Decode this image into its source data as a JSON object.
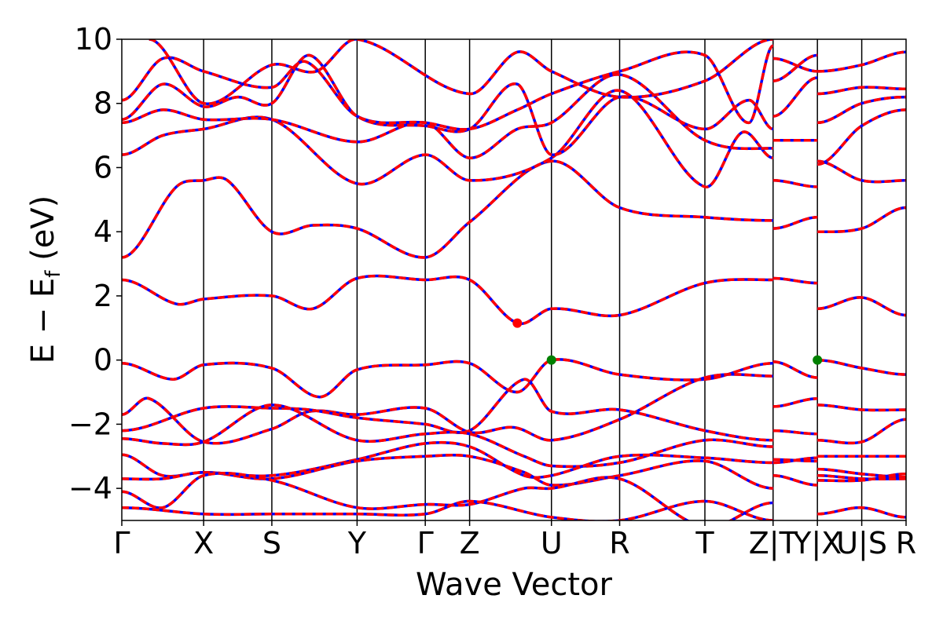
{
  "chart_data": {
    "type": "line",
    "title": "",
    "xlabel": "Wave Vector",
    "ylabel": "E − E_f (eV)",
    "ylabel_main": "E − E",
    "ylabel_sub": "f",
    "ylabel_unit": " (eV)",
    "ylim": [
      -5,
      10
    ],
    "yticks": [
      -4,
      -2,
      0,
      2,
      4,
      6,
      8,
      10
    ],
    "ytick_labels": [
      "−4",
      "−2",
      "0",
      "2",
      "4",
      "6",
      "8",
      "10"
    ],
    "xlim": [
      0,
      11.5
    ],
    "kpath": [
      {
        "label": "Γ",
        "x": 0.0
      },
      {
        "label": "X",
        "x": 1.2
      },
      {
        "label": "S",
        "x": 2.2
      },
      {
        "label": "Y",
        "x": 3.45
      },
      {
        "label": "Γ",
        "x": 4.45
      },
      {
        "label": "Z",
        "x": 5.1
      },
      {
        "label": "U",
        "x": 6.3
      },
      {
        "label": "R",
        "x": 7.3
      },
      {
        "label": "T",
        "x": 8.55
      },
      {
        "label": "Z|T",
        "x": 9.55
      },
      {
        "label": "Y|X",
        "x": 10.2
      },
      {
        "label": "U|S",
        "x": 10.85
      },
      {
        "label": "R",
        "x": 11.5
      }
    ],
    "series": [
      {
        "color": "#0000ff",
        "style": "solid"
      },
      {
        "color": "#ff0000",
        "style": "dashed"
      }
    ],
    "bands": [
      {
        "x": [
          0,
          0.75,
          1.2,
          2.2,
          2.9,
          3.45,
          4.45,
          5.1,
          5.8,
          6.3,
          7.3,
          8.55,
          9.55
        ],
        "y": [
          -0.1,
          -0.6,
          -0.15,
          -0.25,
          -1.15,
          -0.3,
          -0.15,
          -0.1,
          -1.0,
          0.0,
          -0.45,
          -0.6,
          -0.1
        ]
      },
      {
        "x": [
          9.55,
          10.2
        ],
        "y": [
          -0.05,
          -0.55
        ]
      },
      {
        "x": [
          10.2,
          10.85,
          11.5
        ],
        "y": [
          0.0,
          -0.25,
          -0.45
        ]
      },
      {
        "x": [
          0,
          0.4,
          1.2,
          2.2,
          2.75,
          3.45,
          4.45,
          5.1,
          5.75,
          6.3,
          7.3,
          8.55,
          9.55
        ],
        "y": [
          -1.7,
          -1.2,
          -2.55,
          -2.15,
          -1.6,
          -1.7,
          -1.5,
          -2.25,
          -2.1,
          -2.5,
          -1.85,
          -0.55,
          -0.5
        ]
      },
      {
        "x": [
          9.55,
          10.2
        ],
        "y": [
          -1.45,
          -1.2
        ]
      },
      {
        "x": [
          10.2,
          10.85,
          11.5
        ],
        "y": [
          -1.4,
          -1.55,
          -1.55
        ]
      },
      {
        "x": [
          0,
          1.2,
          2.2,
          2.75,
          3.45,
          4.45,
          5.1,
          5.9,
          6.3,
          7.3,
          8.55,
          9.55
        ],
        "y": [
          -2.2,
          -1.5,
          -1.5,
          -1.55,
          -1.8,
          -2.0,
          -2.2,
          -0.6,
          -1.6,
          -1.55,
          -2.2,
          -2.5
        ]
      },
      {
        "x": [
          9.55,
          10.2
        ],
        "y": [
          -2.2,
          -2.3
        ]
      },
      {
        "x": [
          10.2,
          10.85,
          11.5
        ],
        "y": [
          -2.5,
          -2.55,
          -1.85
        ]
      },
      {
        "x": [
          0,
          0.6,
          1.2,
          2.2,
          3.45,
          4.45,
          5.1,
          5.9,
          6.3,
          7.3,
          8.55,
          9.55
        ],
        "y": [
          -2.45,
          -2.6,
          -2.55,
          -1.4,
          -2.5,
          -2.3,
          -2.3,
          -3.0,
          -3.3,
          -3.2,
          -2.5,
          -2.7
        ]
      },
      {
        "x": [
          9.55,
          10.2
        ],
        "y": [
          -3.1,
          -3.15
        ]
      },
      {
        "x": [
          10.2,
          10.85,
          11.5
        ],
        "y": [
          -3.0,
          -3.0,
          -3.0
        ]
      },
      {
        "x": [
          0,
          0.6,
          1.2,
          2.2,
          3.45,
          4.45,
          5.1,
          5.9,
          6.3,
          7.3,
          8.55,
          9.55
        ],
        "y": [
          -2.95,
          -3.6,
          -3.5,
          -3.6,
          -3.1,
          -2.6,
          -2.7,
          -3.6,
          -3.6,
          -3.0,
          -3.05,
          -3.2
        ]
      },
      {
        "x": [
          9.55,
          10.2
        ],
        "y": [
          -3.2,
          -3.05
        ]
      },
      {
        "x": [
          10.2,
          10.85,
          11.5
        ],
        "y": [
          -3.4,
          -3.55,
          -3.65
        ]
      },
      {
        "x": [
          0,
          0.6,
          1.2,
          2.2,
          3.45,
          4.45,
          5.1,
          5.9,
          6.3,
          7.3,
          8.55,
          9.55
        ],
        "y": [
          -3.7,
          -3.7,
          -3.5,
          -3.7,
          -3.15,
          -3.0,
          -3.0,
          -3.5,
          -3.9,
          -3.6,
          -3.15,
          -4.0
        ]
      },
      {
        "x": [
          9.55,
          10.2
        ],
        "y": [
          -3.6,
          -3.9
        ]
      },
      {
        "x": [
          10.2,
          10.85,
          11.5
        ],
        "y": [
          -3.6,
          -3.7,
          -3.7
        ]
      },
      {
        "x": [
          0,
          0.6,
          1.2,
          2.2,
          3.45,
          4.45,
          5.1,
          5.9,
          6.3,
          7.3,
          8.55,
          9.55
        ],
        "y": [
          -4.1,
          -4.6,
          -3.6,
          -3.75,
          -4.6,
          -4.5,
          -4.5,
          -4.0,
          -4.0,
          -3.7,
          -5.2,
          -4.45
        ]
      },
      {
        "x": [
          10.2,
          10.85,
          11.5
        ],
        "y": [
          -3.75,
          -3.75,
          -3.55
        ]
      },
      {
        "x": [
          0,
          1.2,
          2.2,
          3.45,
          4.45,
          5.1,
          6.3,
          7.3,
          8.55,
          9.55
        ],
        "y": [
          -4.6,
          -4.8,
          -4.8,
          -4.8,
          -4.8,
          -4.4,
          -4.9,
          -5.0,
          -4.4,
          -5.0
        ]
      },
      {
        "x": [
          10.2,
          10.85,
          11.5
        ],
        "y": [
          -4.8,
          -4.6,
          -4.9
        ]
      },
      {
        "x": [
          0,
          0.8,
          1.2,
          2.2,
          2.8,
          3.45,
          4.45,
          5.1,
          5.8,
          6.3,
          7.3,
          8.55,
          9.55
        ],
        "y": [
          2.5,
          1.75,
          1.9,
          2.0,
          1.6,
          2.55,
          2.5,
          2.5,
          1.15,
          1.6,
          1.4,
          2.4,
          2.5
        ]
      },
      {
        "x": [
          9.55,
          10.2
        ],
        "y": [
          2.55,
          2.4
        ]
      },
      {
        "x": [
          10.2,
          10.85,
          11.5
        ],
        "y": [
          1.6,
          1.95,
          1.4
        ]
      },
      {
        "x": [
          0,
          0.8,
          1.2,
          1.55,
          2.2,
          2.8,
          3.45,
          4.45,
          5.1,
          6.3,
          7.3,
          8.55,
          9.55
        ],
        "y": [
          3.2,
          5.4,
          5.6,
          5.6,
          4.0,
          4.2,
          4.1,
          3.2,
          4.3,
          6.2,
          4.75,
          4.45,
          4.35
        ]
      },
      {
        "x": [
          9.55,
          10.2
        ],
        "y": [
          4.1,
          4.45
        ]
      },
      {
        "x": [
          10.2,
          10.85,
          11.5
        ],
        "y": [
          4.0,
          4.1,
          4.75
        ]
      },
      {
        "x": [
          0,
          0.6,
          1.2,
          2.2,
          3.45,
          4.45,
          5.1,
          6.3,
          7.3,
          8.55,
          9.1,
          9.55
        ],
        "y": [
          6.4,
          7.0,
          7.2,
          7.5,
          5.5,
          6.4,
          5.6,
          6.3,
          8.4,
          5.4,
          7.1,
          6.3
        ]
      },
      {
        "x": [
          9.55,
          10.2
        ],
        "y": [
          5.6,
          5.4
        ]
      },
      {
        "x": [
          10.2,
          10.85,
          11.5
        ],
        "y": [
          6.2,
          5.6,
          5.6
        ]
      },
      {
        "x": [
          0,
          0.6,
          1.2,
          2.2,
          3.45,
          4.45,
          5.1,
          5.8,
          6.3,
          7.3,
          8.55,
          9.55
        ],
        "y": [
          7.4,
          7.8,
          7.5,
          7.5,
          6.8,
          7.4,
          6.3,
          7.2,
          7.4,
          8.9,
          6.85,
          6.6
        ]
      },
      {
        "x": [
          9.55,
          10.2
        ],
        "y": [
          6.85,
          6.85
        ]
      },
      {
        "x": [
          10.2,
          10.85,
          11.5
        ],
        "y": [
          6.1,
          7.3,
          7.8
        ]
      },
      {
        "x": [
          0,
          0.6,
          1.2,
          1.7,
          2.2,
          2.75,
          3.45,
          4.45,
          5.1,
          5.8,
          6.3,
          7.3,
          8.55,
          9.2,
          9.55
        ],
        "y": [
          7.5,
          8.6,
          7.9,
          8.2,
          8.0,
          9.5,
          7.6,
          7.3,
          7.2,
          8.6,
          6.4,
          8.2,
          7.2,
          8.1,
          7.2
        ]
      },
      {
        "x": [
          9.55,
          10.2
        ],
        "y": [
          7.6,
          8.8
        ]
      },
      {
        "x": [
          10.2,
          10.85,
          11.5
        ],
        "y": [
          7.4,
          8.0,
          8.2
        ]
      },
      {
        "x": [
          0,
          0.6,
          1.2,
          2.2,
          2.7,
          3.45,
          4.45,
          5.1,
          5.8,
          6.3,
          7.3,
          8.55,
          9.2,
          9.55
        ],
        "y": [
          8.1,
          9.4,
          9.0,
          8.5,
          9.3,
          7.6,
          7.4,
          7.2,
          7.8,
          8.3,
          9.0,
          9.5,
          7.4,
          9.8
        ]
      },
      {
        "x": [
          9.55,
          10.2
        ],
        "y": [
          8.7,
          9.5
        ]
      },
      {
        "x": [
          10.2,
          10.85,
          11.5
        ],
        "y": [
          8.3,
          8.5,
          8.45
        ]
      },
      {
        "x": [
          0.4,
          1.2,
          2.2,
          2.85,
          3.45,
          5.1,
          5.8,
          6.3,
          7.3,
          8.55,
          9.55
        ],
        "y": [
          10.0,
          8.0,
          9.2,
          9.0,
          10.0,
          8.3,
          9.6,
          9.0,
          8.2,
          8.7,
          10.0
        ]
      },
      {
        "x": [
          9.55,
          10.2
        ],
        "y": [
          9.4,
          9.0
        ]
      },
      {
        "x": [
          10.2,
          10.85,
          11.5
        ],
        "y": [
          9.0,
          9.2,
          9.6
        ]
      }
    ],
    "markers": [
      {
        "x": 5.8,
        "y": 1.15,
        "color": "#ff0000"
      },
      {
        "x": 6.3,
        "y": 0.0,
        "color": "#008000"
      },
      {
        "x": 10.2,
        "y": 0.0,
        "color": "#008000"
      }
    ]
  }
}
